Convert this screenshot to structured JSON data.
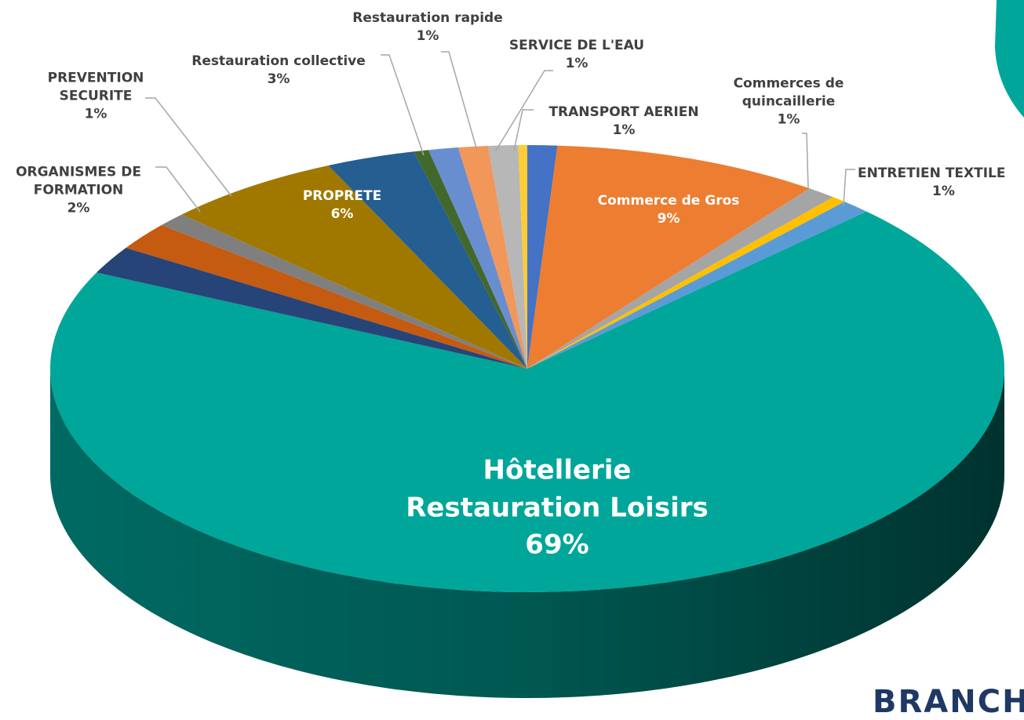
{
  "chart_data": {
    "type": "pie3d",
    "categories": [
      null,
      "Commerce de Gros",
      "Commerces de quincaillerie",
      null,
      "ENTRETIEN TEXTILE",
      "Hôtellerie Restauration Loisirs",
      null,
      "ORGANISMES DE FORMATION",
      "PREVENTION SECURITE",
      "PROPRETE",
      "Restauration collective",
      null,
      "Restauration rapide",
      "SERVICE DE L'EAU",
      "TRANSPORT AERIEN",
      null
    ],
    "values": [
      1,
      9,
      1,
      0.5,
      1,
      69,
      2,
      2,
      1,
      6,
      3,
      0.5,
      1,
      1,
      1,
      0.3
    ],
    "value_labels": [
      null,
      "9%",
      "1%",
      null,
      "1%",
      "69%",
      null,
      "2%",
      "1%",
      "6%",
      "3%",
      null,
      "1%",
      "1%",
      "1%",
      null
    ],
    "colors": [
      "#4472c4",
      "#ed7d31",
      "#a5a5a5",
      "#ffc000",
      "#5b9bd5",
      "#00a69a",
      "#264478",
      "#c55a11",
      "#7f7f7f",
      "#a07800",
      "#255e91",
      "#43682b",
      "#698ed0",
      "#f1975a",
      "#b7b7b7",
      "#ffcd33"
    ]
  },
  "fragment": "BRANCHE"
}
